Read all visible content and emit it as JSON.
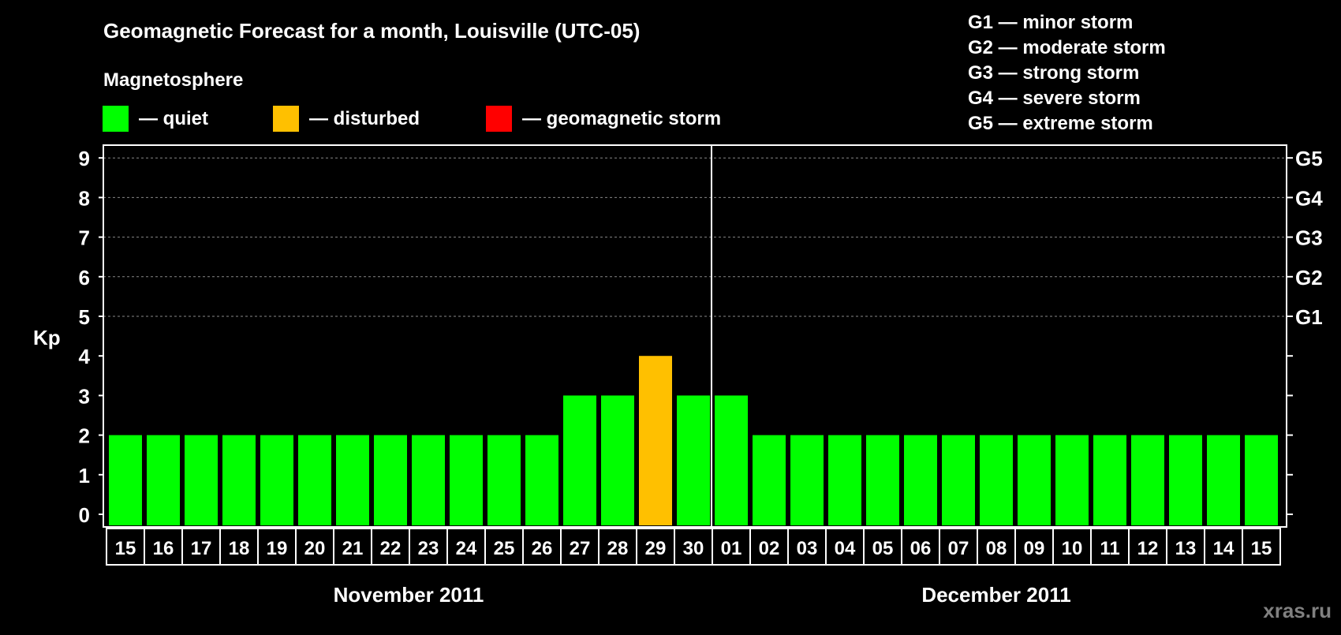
{
  "chart_data": {
    "type": "bar",
    "title": "Geomagnetic Forecast for a month, Louisville (UTC-05)",
    "legend_title": "Magnetosphere",
    "legend": [
      {
        "label": "— quiet",
        "color": "#00ff00"
      },
      {
        "label": "— disturbed",
        "color": "#ffc000"
      },
      {
        "label": "— geomagnetic storm",
        "color": "#ff0000"
      }
    ],
    "storm_legend": [
      "G1 — minor storm",
      "G2 — moderate storm",
      "G3 — strong storm",
      "G4 — severe storm",
      "G5 — extreme storm"
    ],
    "ylabel": "Kp",
    "ylim": [
      0,
      9
    ],
    "yticks": [
      "0",
      "1",
      "2",
      "3",
      "4",
      "5",
      "6",
      "7",
      "8",
      "9"
    ],
    "right_ticks": [
      {
        "kp": 5,
        "label": "G1"
      },
      {
        "kp": 6,
        "label": "G2"
      },
      {
        "kp": 7,
        "label": "G3"
      },
      {
        "kp": 8,
        "label": "G4"
      },
      {
        "kp": 9,
        "label": "G5"
      }
    ],
    "categories": [
      "15",
      "16",
      "17",
      "18",
      "19",
      "20",
      "21",
      "22",
      "23",
      "24",
      "25",
      "26",
      "27",
      "28",
      "29",
      "30",
      "01",
      "02",
      "03",
      "04",
      "05",
      "06",
      "07",
      "08",
      "09",
      "10",
      "11",
      "12",
      "13",
      "14",
      "15"
    ],
    "values": [
      2,
      2,
      2,
      2,
      2,
      2,
      2,
      2,
      2,
      2,
      2,
      2,
      3,
      3,
      4,
      3,
      3,
      2,
      2,
      2,
      2,
      2,
      2,
      2,
      2,
      2,
      2,
      2,
      2,
      2,
      2
    ],
    "status": [
      "quiet",
      "quiet",
      "quiet",
      "quiet",
      "quiet",
      "quiet",
      "quiet",
      "quiet",
      "quiet",
      "quiet",
      "quiet",
      "quiet",
      "quiet",
      "quiet",
      "disturbed",
      "quiet",
      "quiet",
      "quiet",
      "quiet",
      "quiet",
      "quiet",
      "quiet",
      "quiet",
      "quiet",
      "quiet",
      "quiet",
      "quiet",
      "quiet",
      "quiet",
      "quiet",
      "quiet"
    ],
    "months": [
      "November 2011",
      "December 2011"
    ],
    "month_split_index": 16,
    "grid": true
  },
  "colors": {
    "quiet": "#00ff00",
    "disturbed": "#ffc000",
    "storm": "#ff0000"
  },
  "watermark": "xras.ru"
}
